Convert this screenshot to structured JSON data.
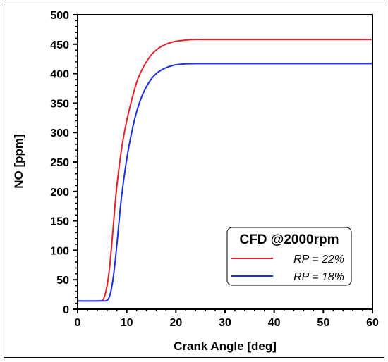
{
  "chart_data": {
    "type": "line",
    "xlabel": "Crank Angle [deg]",
    "ylabel": "NO [ppm]",
    "xlim": [
      0,
      60
    ],
    "ylim": [
      0,
      500
    ],
    "xticks": [
      0,
      10,
      20,
      30,
      40,
      50,
      60
    ],
    "yticks": [
      0,
      50,
      100,
      150,
      200,
      250,
      300,
      350,
      400,
      450,
      500
    ],
    "xtick_labels": [
      "0",
      "10",
      "20",
      "30",
      "40",
      "50",
      "60"
    ],
    "ytick_labels": [
      "0",
      "50",
      "100",
      "150",
      "200",
      "250",
      "300",
      "350",
      "400",
      "450",
      "500"
    ],
    "grid": false,
    "legend": {
      "title": "CFD @2000rpm",
      "placement": "bottom-right"
    },
    "series": [
      {
        "name": "RP = 22%",
        "color": "#e8202a",
        "x": [
          0,
          4,
          5,
          5.5,
          6,
          6.5,
          7,
          7.5,
          8,
          9,
          10,
          11,
          12,
          13,
          14,
          15,
          16,
          17,
          18,
          19,
          20,
          22,
          24,
          26,
          30,
          40,
          50,
          60
        ],
        "y": [
          14,
          14,
          15,
          22,
          40,
          70,
          115,
          165,
          210,
          275,
          320,
          355,
          385,
          405,
          420,
          432,
          440,
          446,
          450,
          453,
          455,
          457,
          458,
          458,
          458,
          458,
          458,
          458
        ]
      },
      {
        "name": "RP = 18%",
        "color": "#1a2eea",
        "x": [
          0,
          5,
          6,
          6.5,
          7,
          7.5,
          8,
          8.5,
          9,
          10,
          11,
          12,
          13,
          14,
          15,
          16,
          17,
          18,
          19,
          20,
          22,
          24,
          26,
          30,
          40,
          50,
          60
        ],
        "y": [
          14,
          14,
          15,
          22,
          40,
          70,
          110,
          155,
          195,
          255,
          300,
          335,
          360,
          378,
          391,
          400,
          406,
          410,
          413,
          415,
          416.5,
          417,
          417,
          417,
          417,
          417,
          417
        ]
      }
    ]
  }
}
